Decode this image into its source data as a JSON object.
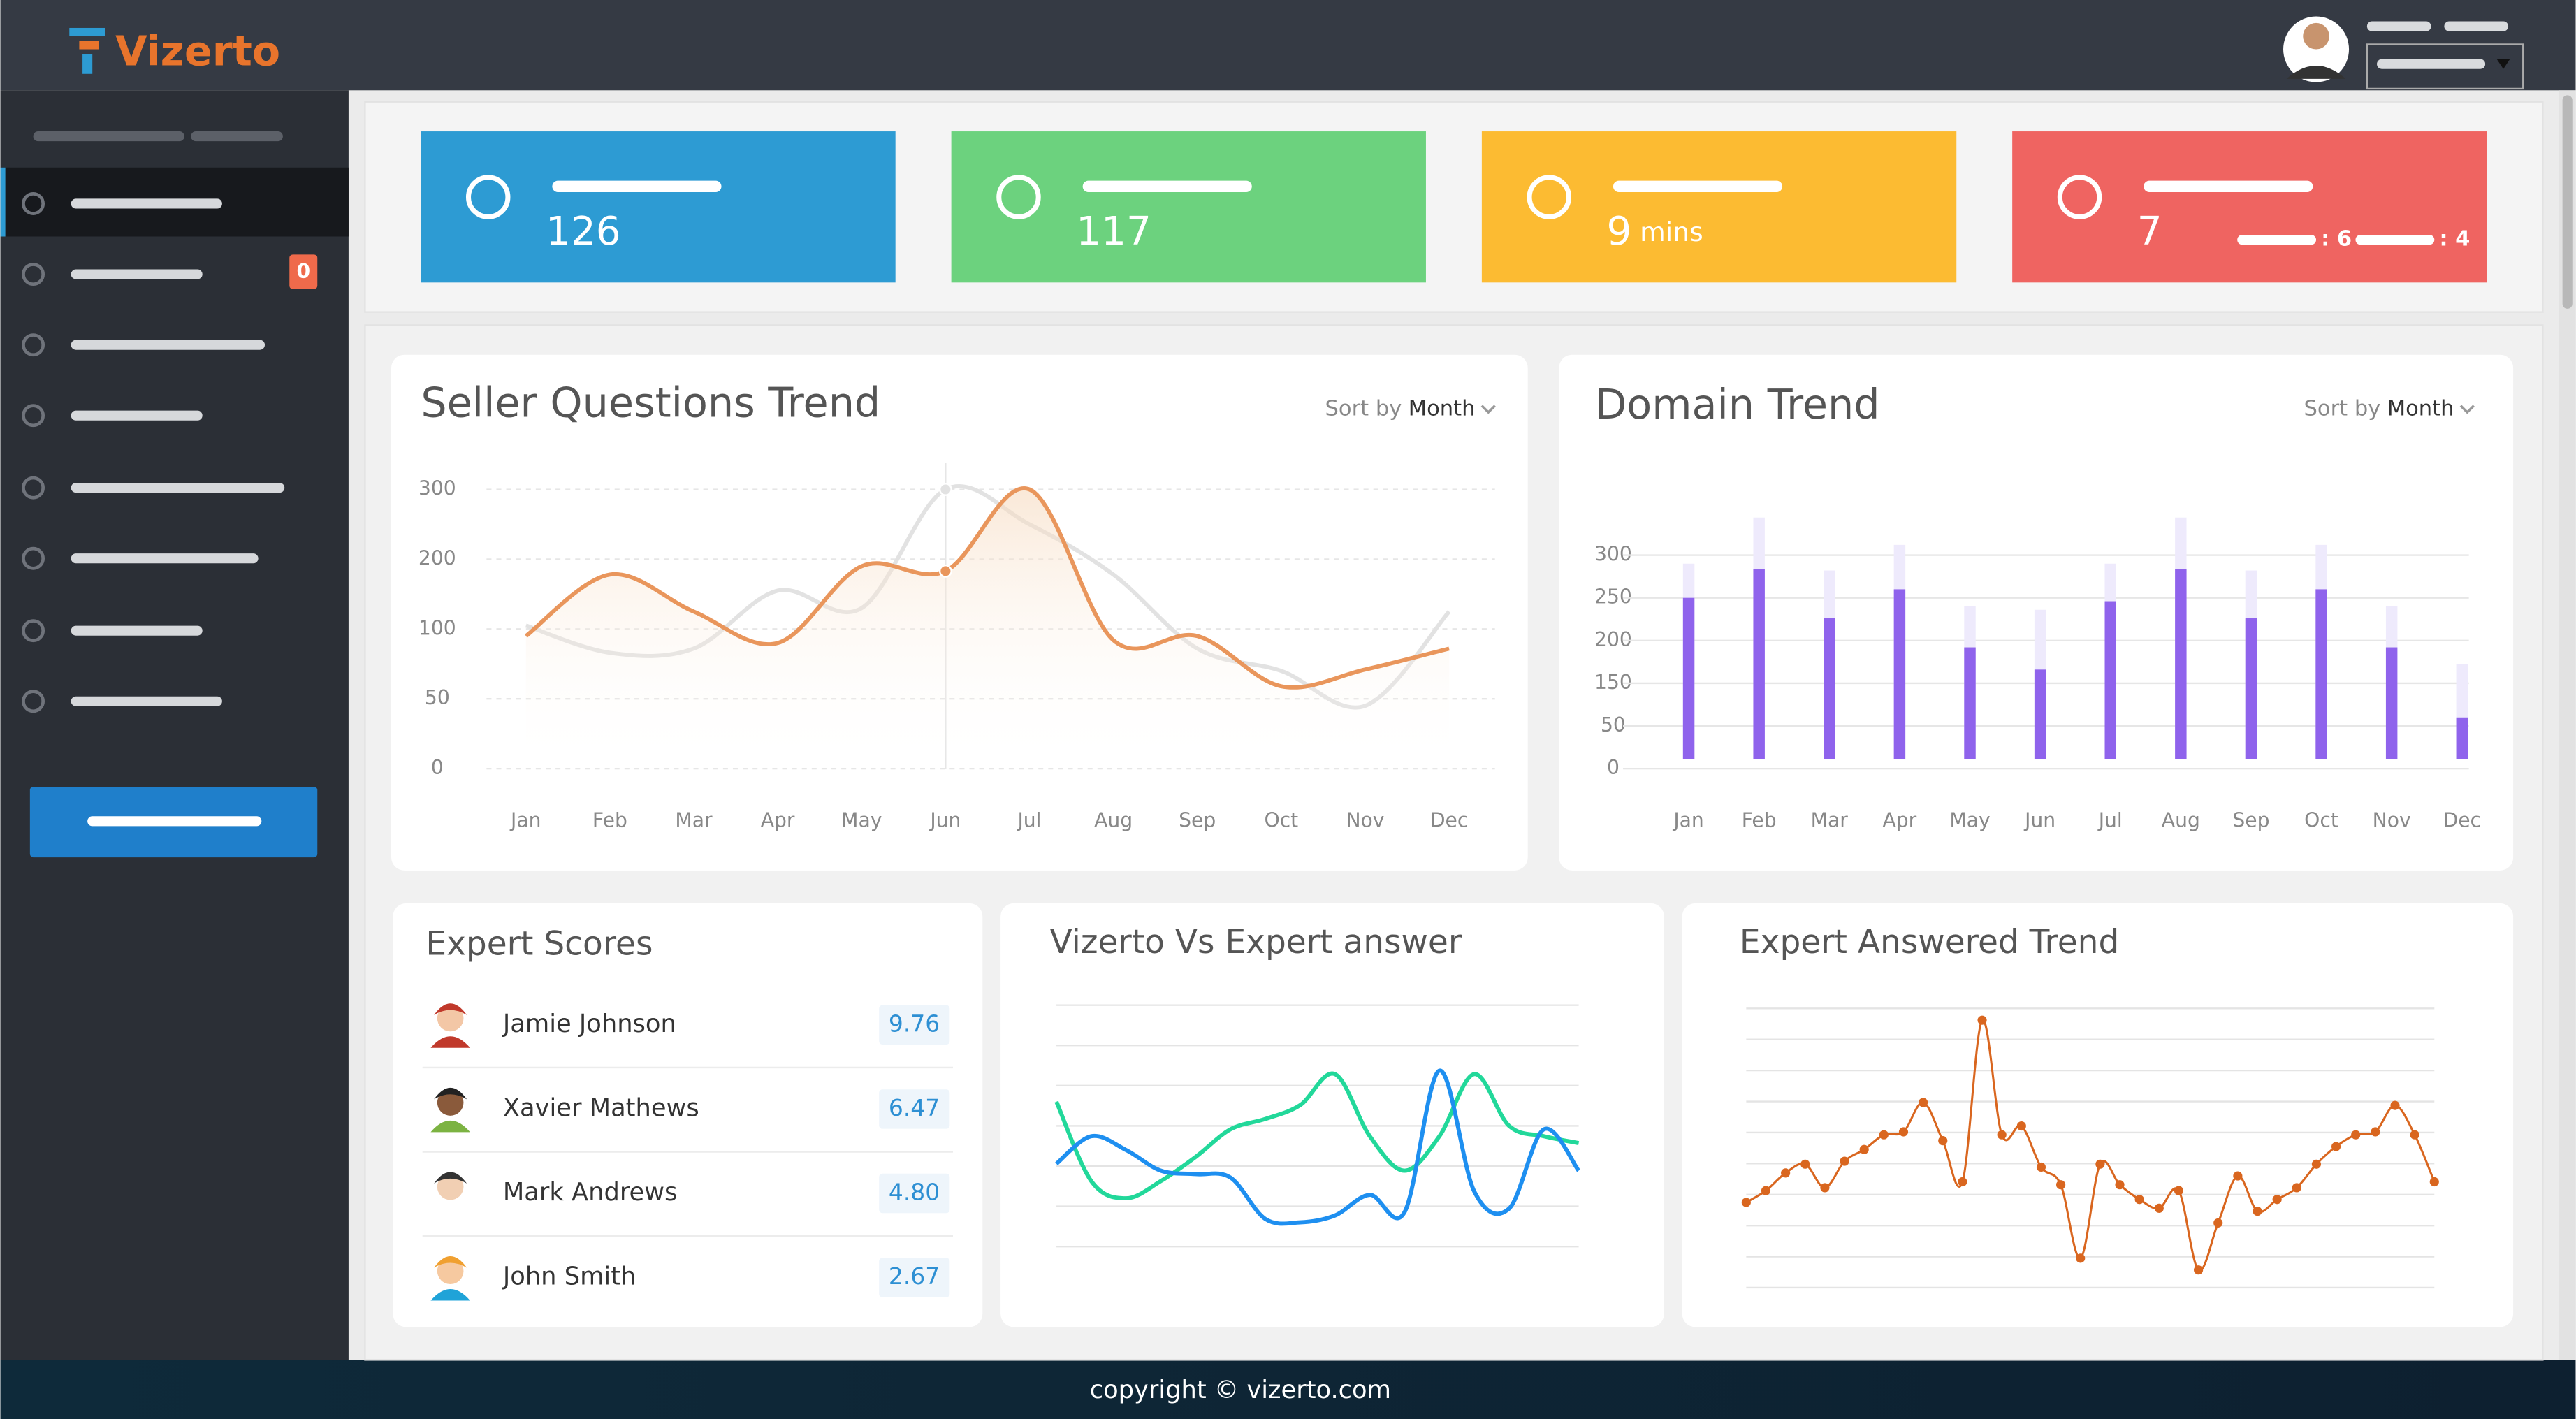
{
  "header": {
    "logo": "Vizerto"
  },
  "sidebar": {
    "badge": "0"
  },
  "stats": [
    {
      "value": "126",
      "color": "#2d9bd3"
    },
    {
      "value": "117",
      "color": "#6cd27e"
    },
    {
      "value": "9",
      "unit": "mins",
      "color": "#fcbb32"
    },
    {
      "value": "7",
      "sub": [
        ": 6",
        ": 4"
      ],
      "color": "#ef6461"
    }
  ],
  "chart_data": [
    {
      "type": "line",
      "title": "Seller Questions Trend",
      "sort_label": "Sort by",
      "sort_value": "Month",
      "grid": true,
      "categories": [
        "Jan",
        "Feb",
        "Mar",
        "Apr",
        "May",
        "Jun",
        "Jul",
        "Aug",
        "Sep",
        "Oct",
        "Nov",
        "Dec"
      ],
      "yticks": [
        0,
        50,
        100,
        200,
        300
      ],
      "series": [
        {
          "color": "#e2e2e2",
          "values": [
            105,
            83,
            86,
            155,
            130,
            300,
            250,
            178,
            86,
            70,
            45,
            125
          ]
        },
        {
          "color": "#e9965c",
          "area": true,
          "values": [
            95,
            178,
            125,
            90,
            190,
            183,
            300,
            92,
            95,
            59,
            71,
            86
          ]
        }
      ]
    },
    {
      "type": "bar",
      "title": "Domain Trend",
      "sort_label": "Sort by",
      "sort_value": "Month",
      "grid": true,
      "categories": [
        "Jan",
        "Feb",
        "Mar",
        "Apr",
        "May",
        "Jun",
        "Jul",
        "Aug",
        "Sep",
        "Oct",
        "Nov",
        "Dec"
      ],
      "yticks": [
        0,
        50,
        150,
        200,
        250,
        300
      ],
      "series": [
        {
          "color": "#eeeafc",
          "values": [
            290,
            344,
            282,
            312,
            240,
            236,
            290,
            344,
            282,
            312,
            240,
            172
          ]
        },
        {
          "color": "#8f63ec",
          "values": [
            250,
            284,
            226,
            260,
            192,
            166,
            246,
            284,
            226,
            260,
            192,
            70
          ]
        }
      ]
    },
    {
      "type": "line",
      "title": "Vizerto Vs Expert answer",
      "ylim": [
        0,
        7
      ],
      "series": [
        {
          "color": "#22d89a",
          "values": [
            4.2,
            1.9,
            1.4,
            1.9,
            2.6,
            3.4,
            3.7,
            4.1,
            5.0,
            3.2,
            2.2,
            3.2,
            5.0,
            3.5,
            3.2,
            3.0
          ]
        },
        {
          "color": "#1e8ff0",
          "values": [
            2.4,
            3.2,
            2.8,
            2.2,
            2.1,
            2.0,
            0.8,
            0.7,
            0.9,
            1.5,
            1.0,
            5.1,
            1.6,
            1.1,
            3.4,
            2.2
          ]
        }
      ]
    },
    {
      "type": "line",
      "title": "Expert Answered Trend",
      "ylim": [
        0,
        9.5
      ],
      "markers": true,
      "series": [
        {
          "color": "#d9661f",
          "values": [
            2.9,
            3.3,
            3.9,
            4.2,
            3.4,
            4.3,
            4.7,
            5.2,
            5.3,
            6.3,
            5.0,
            3.6,
            9.1,
            5.2,
            5.5,
            4.1,
            3.5,
            1.0,
            4.2,
            3.5,
            3.0,
            2.7,
            3.3,
            0.6,
            2.2,
            3.8,
            2.6,
            3.0,
            3.4,
            4.2,
            4.8,
            5.2,
            5.3,
            6.2,
            5.2,
            3.6
          ]
        }
      ]
    }
  ],
  "expert_scores": {
    "title": "Expert Scores",
    "rows": [
      {
        "name": "Jamie Johnson",
        "score": "9.76"
      },
      {
        "name": "Xavier Mathews",
        "score": "6.47"
      },
      {
        "name": "Mark Andrews",
        "score": "4.80"
      },
      {
        "name": "John Smith",
        "score": "2.67"
      }
    ]
  },
  "footer": {
    "text": "copyright © vizerto.com"
  }
}
